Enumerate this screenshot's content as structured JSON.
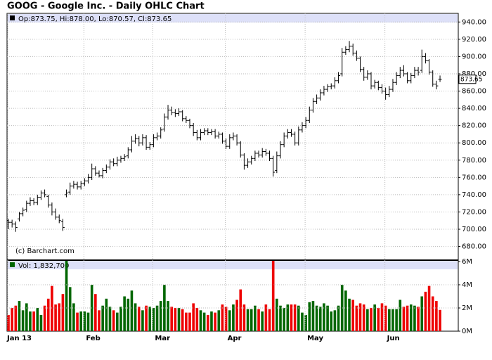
{
  "chart_data": {
    "type": "ohlc",
    "title": "GOOG - Google Inc. - Daily OHLC Chart",
    "ohlc_label": "Op:873.75, Hi:878.00, Lo:870.57, Cl:873.65",
    "copyright": "(c) Barchart.com",
    "last_label": "873.65",
    "grid": true,
    "bar_color": "#000000",
    "up_color": "#006600",
    "down_color": "#ee0000",
    "band_color": "#dde0f8",
    "categories": [
      "Jan 13",
      null,
      null,
      null,
      null,
      null,
      null,
      null,
      null,
      null,
      null,
      null,
      null,
      null,
      null,
      null,
      null,
      null,
      null,
      null,
      null,
      "Feb",
      null,
      null,
      null,
      null,
      null,
      null,
      null,
      null,
      null,
      null,
      null,
      null,
      null,
      null,
      null,
      null,
      null,
      null,
      "Mar",
      null,
      null,
      null,
      null,
      null,
      null,
      null,
      null,
      null,
      null,
      null,
      null,
      null,
      null,
      null,
      null,
      null,
      null,
      null,
      "Apr",
      null,
      null,
      null,
      null,
      null,
      null,
      null,
      null,
      null,
      null,
      null,
      null,
      null,
      null,
      null,
      null,
      null,
      null,
      null,
      null,
      null,
      "May",
      null,
      null,
      null,
      null,
      null,
      null,
      null,
      null,
      null,
      null,
      null,
      null,
      null,
      null,
      null,
      null,
      null,
      null,
      null,
      null,
      null,
      "Jun",
      null,
      null,
      null,
      null,
      null,
      null,
      null,
      null,
      null,
      null,
      null,
      null,
      null,
      null,
      null
    ],
    "open": [
      710,
      708,
      706,
      712,
      718,
      723,
      730,
      733,
      731,
      737,
      742,
      738,
      728,
      720,
      714,
      709,
      740,
      743,
      750,
      752,
      749,
      753,
      756,
      760,
      770,
      765,
      762,
      768,
      772,
      778,
      776,
      780,
      782,
      785,
      792,
      802,
      805,
      800,
      806,
      795,
      798,
      806,
      808,
      816,
      830,
      838,
      835,
      834,
      836,
      828,
      826,
      820,
      812,
      806,
      812,
      814,
      812,
      813,
      808,
      810,
      802,
      796,
      806,
      808,
      800,
      786,
      774,
      778,
      782,
      788,
      786,
      790,
      788,
      782,
      768,
      785,
      798,
      808,
      812,
      810,
      800,
      815,
      820,
      826,
      838,
      848,
      852,
      858,
      862,
      865,
      866,
      872,
      880,
      905,
      908,
      912,
      904,
      898,
      885,
      876,
      880,
      866,
      870,
      864,
      860,
      856,
      862,
      870,
      878,
      884,
      880,
      872,
      878,
      884,
      884,
      900,
      895,
      882,
      868,
      873.75
    ],
    "high": [
      712,
      711,
      709,
      720,
      725,
      733,
      737,
      736,
      740,
      745,
      746,
      740,
      731,
      724,
      717,
      712,
      746,
      754,
      756,
      755,
      756,
      759,
      764,
      776,
      773,
      768,
      771,
      775,
      781,
      782,
      784,
      785,
      787,
      795,
      808,
      810,
      808,
      810,
      809,
      801,
      810,
      812,
      818,
      834,
      844,
      842,
      839,
      840,
      838,
      831,
      828,
      823,
      815,
      816,
      817,
      817,
      816,
      816,
      813,
      812,
      805,
      810,
      812,
      810,
      802,
      788,
      782,
      785,
      791,
      791,
      794,
      793,
      791,
      785,
      790,
      802,
      812,
      816,
      816,
      813,
      819,
      824,
      830,
      842,
      852,
      856,
      862,
      866,
      868,
      869,
      876,
      882,
      910,
      912,
      918,
      915,
      907,
      900,
      888,
      884,
      882,
      873,
      872,
      868,
      864,
      866,
      874,
      882,
      888,
      890,
      882,
      881,
      888,
      888,
      908,
      904,
      897,
      884,
      872,
      878
    ],
    "low": [
      700,
      702,
      697,
      709,
      715,
      720,
      727,
      728,
      728,
      734,
      737,
      725,
      716,
      711,
      707,
      698,
      737,
      740,
      747,
      746,
      746,
      750,
      753,
      757,
      762,
      760,
      759,
      765,
      769,
      773,
      773,
      777,
      779,
      782,
      789,
      799,
      796,
      797,
      792,
      792,
      795,
      803,
      805,
      813,
      827,
      832,
      830,
      831,
      825,
      823,
      817,
      808,
      803,
      803,
      809,
      809,
      809,
      805,
      805,
      799,
      793,
      793,
      803,
      797,
      783,
      769,
      771,
      775,
      779,
      783,
      783,
      785,
      779,
      761,
      765,
      782,
      795,
      805,
      807,
      797,
      797,
      812,
      817,
      823,
      835,
      845,
      849,
      855,
      859,
      862,
      863,
      869,
      877,
      902,
      905,
      901,
      895,
      882,
      872,
      873,
      862,
      863,
      861,
      857,
      850,
      853,
      859,
      867,
      875,
      877,
      869,
      869,
      875,
      878,
      881,
      892,
      879,
      865,
      862,
      870.57
    ],
    "close": [
      708,
      706,
      702,
      718,
      722,
      730,
      733,
      731,
      737,
      742,
      740,
      728,
      720,
      714,
      710,
      702,
      742,
      750,
      752,
      749,
      753,
      756,
      760,
      770,
      765,
      762,
      768,
      772,
      778,
      776,
      780,
      782,
      784,
      792,
      802,
      805,
      800,
      806,
      795,
      798,
      806,
      808,
      815,
      830,
      838,
      835,
      834,
      836,
      828,
      826,
      820,
      812,
      806,
      812,
      814,
      812,
      813,
      808,
      810,
      802,
      796,
      806,
      808,
      800,
      786,
      774,
      778,
      782,
      788,
      786,
      790,
      788,
      782,
      766,
      785,
      798,
      808,
      812,
      810,
      800,
      815,
      820,
      826,
      838,
      848,
      852,
      858,
      862,
      865,
      866,
      872,
      878,
      905,
      908,
      912,
      904,
      898,
      885,
      876,
      880,
      866,
      870,
      864,
      860,
      856,
      862,
      870,
      878,
      884,
      880,
      872,
      878,
      884,
      882,
      900,
      895,
      882,
      868,
      866,
      873.65
    ],
    "ylim": [
      665,
      950
    ],
    "yticks": [
      {
        "value": 680,
        "label": "680.00"
      },
      {
        "value": 700,
        "label": "700.00"
      },
      {
        "value": 720,
        "label": "720.00"
      },
      {
        "value": 740,
        "label": "740.00"
      },
      {
        "value": 760,
        "label": "760.00"
      },
      {
        "value": 780,
        "label": "780.00"
      },
      {
        "value": 800,
        "label": "800.00"
      },
      {
        "value": 820,
        "label": "820.00"
      },
      {
        "value": 840,
        "label": "840.00"
      },
      {
        "value": 860,
        "label": "860.00"
      },
      {
        "value": 880,
        "label": "880.00"
      },
      {
        "value": 900,
        "label": "900.00"
      },
      {
        "value": 920,
        "label": "920.00"
      },
      {
        "value": 940,
        "label": "940.00"
      }
    ],
    "volume": {
      "label": "Vol: 1,832,700",
      "ylim": [
        0,
        6000000
      ],
      "yticks": [
        {
          "value": 0,
          "label": "0M"
        },
        {
          "value": 2000000,
          "label": "2M"
        },
        {
          "value": 4000000,
          "label": "4M"
        },
        {
          "value": 6000000,
          "label": "6M"
        }
      ],
      "values": [
        1400000,
        2000000,
        2200000,
        2600000,
        1800000,
        2400000,
        1700000,
        1700000,
        2000000,
        1400000,
        2200000,
        2800000,
        3900000,
        2300000,
        2400000,
        3200000,
        6300000,
        3800000,
        2400000,
        1600000,
        1700000,
        1700000,
        1600000,
        4000000,
        3200000,
        1800000,
        2200000,
        2800000,
        2100000,
        1800000,
        1600000,
        2100000,
        3000000,
        2800000,
        3500000,
        2400000,
        2100000,
        1800000,
        2200000,
        2100000,
        2000000,
        2200000,
        2600000,
        4000000,
        2600000,
        2100000,
        2000000,
        2000000,
        1900000,
        1600000,
        1600000,
        2400000,
        2000000,
        1800000,
        1600000,
        1400000,
        1700000,
        1600000,
        1800000,
        2300000,
        2100000,
        1800000,
        2300000,
        2700000,
        3600000,
        2300000,
        1900000,
        1900000,
        2200000,
        1900000,
        1700000,
        2300000,
        1900000,
        6300000,
        2800000,
        2200000,
        2000000,
        2300000,
        2300000,
        2300000,
        2200000,
        1600000,
        1400000,
        2500000,
        2600000,
        2200000,
        2100000,
        2400000,
        2200000,
        1700000,
        1800000,
        2200000,
        4000000,
        3500000,
        2800000,
        2700000,
        2200000,
        2400000,
        2300000,
        1900000,
        2000000,
        2300000,
        2000000,
        2400000,
        2200000,
        1900000,
        1900000,
        1900000,
        2700000,
        2100000,
        2200000,
        2300000,
        2200000,
        2100000,
        3000000,
        3400000,
        3900000,
        3000000,
        2600000,
        1832700
      ]
    }
  }
}
